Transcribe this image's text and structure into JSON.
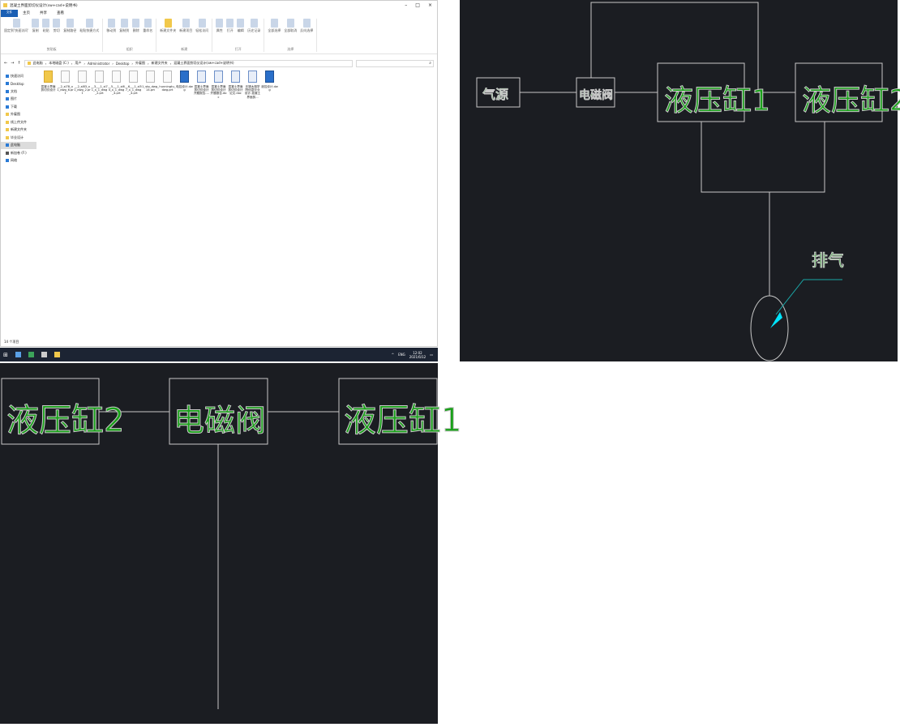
{
  "explorer": {
    "title": "混凝土界面剪切仪设计(sw+cad+说明书)",
    "tabs": [
      "文件",
      "主页",
      "共享",
      "查看"
    ],
    "ribbon": {
      "groups": [
        {
          "label": "剪贴板",
          "items": [
            "固定到'快速访问'",
            "复制",
            "粘贴",
            "剪切",
            "复制路径",
            "粘贴快捷方式"
          ]
        },
        {
          "label": "组织",
          "items": [
            "移动到",
            "复制到",
            "删除",
            "重命名"
          ]
        },
        {
          "label": "新建",
          "items": [
            "新建文件夹",
            "新建项目",
            "轻松访问"
          ]
        },
        {
          "label": "打开",
          "items": [
            "属性",
            "打开",
            "编辑",
            "历史记录"
          ]
        },
        {
          "label": "选择",
          "items": [
            "全部选择",
            "全部取消",
            "反向选择"
          ]
        }
      ]
    },
    "breadcrumb": [
      "此电脑",
      "本地磁盘 (C:)",
      "用户",
      "Administrator",
      "Desktop",
      "外雇图",
      "新建文件夹",
      "混凝土界面剪切仪设计(sw+cad+说明书)"
    ],
    "search_placeholder": "",
    "nav": {
      "quick_access": "快速访问",
      "items": [
        "Desktop",
        "文档",
        "图片",
        "下载",
        "外雇图",
        "线上传文件",
        "新建文件夹",
        "毕业设计"
      ],
      "this_pc": "此电脑",
      "drive": "新加卷 (F:)",
      "network": "网络"
    },
    "files": [
      {
        "name": "混凝土界面剪切仪设计",
        "type": "folder"
      },
      {
        "name": "__2_sl78_x1_dwg_6.prt",
        "type": "prt"
      },
      {
        "name": "__2_sl83_x1_dwg_2.prt",
        "type": "prt"
      },
      {
        "name": "__3___1_sl71_x_1_dwg_2.prt",
        "type": "prt"
      },
      {
        "name": "__5___1_sl64_x_1_dwg_4.prt",
        "type": "prt"
      },
      {
        "name": "__6___1_sl57_x_1_dwg_4.prt",
        "type": "prt"
      },
      {
        "name": "1_stp_dwg_14.prt",
        "type": "prt"
      },
      {
        "name": "hunningtu_dwg.prt",
        "type": "prt"
      },
      {
        "name": "电控设计.dwg",
        "type": "dwg"
      },
      {
        "name": "混凝土界面剪切仪设计 开题报告-...",
        "type": "doc"
      },
      {
        "name": "混凝土界面剪切仪设计 开题报告.doc",
        "type": "doc"
      },
      {
        "name": "混凝土界面剪切仪设计 论文.doc",
        "type": "doc"
      },
      {
        "name": "无锡太湖学院信息毕业设计-混凝土界面剪...",
        "type": "doc"
      },
      {
        "name": "液控设计.dwg",
        "type": "dwg"
      }
    ],
    "status": "14 个项目"
  },
  "taskbar": {
    "lang": "ENG",
    "time": "12:02",
    "date": "2021/6/12"
  },
  "cad_top": {
    "labels": {
      "air_source": "气源",
      "valve": "电磁阀",
      "cyl1": "液压缸1",
      "cyl2": "液压缸2",
      "exhaust": "排气"
    },
    "colors": {
      "background": "#1b1d22",
      "text": "#19a019",
      "line": "#c8c8c8",
      "arrow": "#00e5ff"
    }
  },
  "cad_bottom": {
    "labels": {
      "cyl2": "液压缸2",
      "valve": "电磁阀",
      "cyl1": "液压缸1"
    }
  }
}
